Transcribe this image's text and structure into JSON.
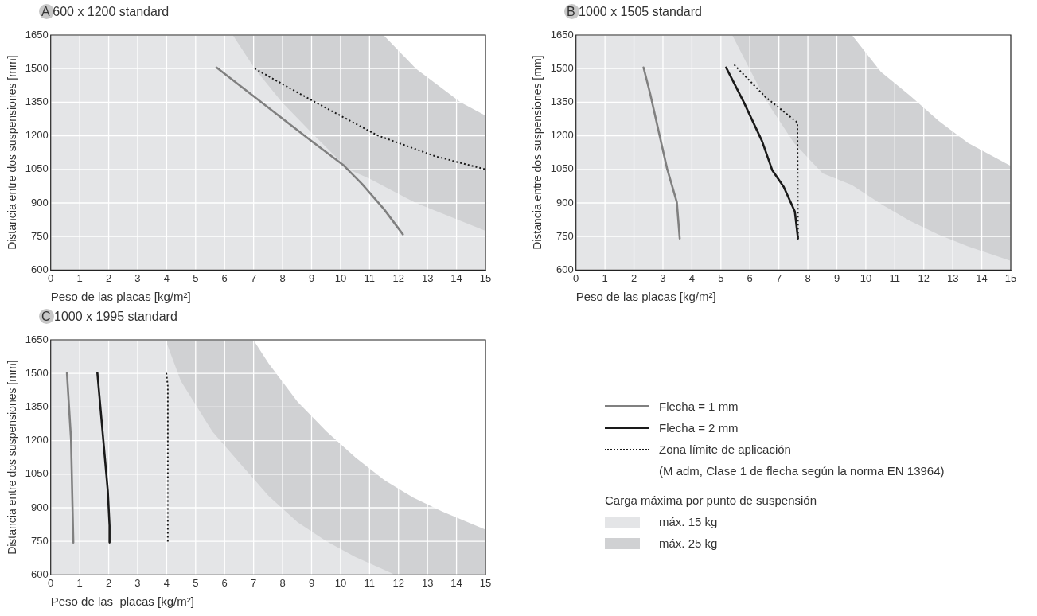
{
  "chart_data": [
    {
      "type": "line",
      "title": "A 600 x 1200 standard",
      "xlabel": "Peso de las placas [kg/m²]",
      "ylabel": "Distancia entre dos suspensiones [mm]",
      "xlim": [
        0,
        15
      ],
      "xticks": [
        0,
        1,
        2,
        3,
        4,
        5,
        6,
        7,
        8,
        9,
        10,
        11,
        12,
        13,
        14,
        15
      ],
      "ylim": [
        600,
        1650
      ],
      "yticks": [
        600,
        750,
        900,
        1050,
        1200,
        1350,
        1500,
        1650
      ],
      "grid": true,
      "legend": false,
      "series": [
        {
          "type": "line",
          "color": "#808080",
          "x": [
            5.72,
            8.98,
            10.09,
            10.74,
            11.5,
            12.15
          ],
          "values": [
            1505,
            1178,
            1070,
            985,
            872,
            760
          ]
        },
        {
          "type": "line",
          "color": "#1a1a1a",
          "line_style": "dotted",
          "x": [
            7.04,
            9.04,
            11.27,
            13.26,
            15
          ],
          "values": [
            1500,
            1356,
            1202,
            1109,
            1050
          ]
        },
        {
          "type": "area",
          "color": "#e4e5e7",
          "x": [
            0,
            6.28,
            7.04,
            7.98,
            9.1,
            10.27,
            11,
            12.6,
            15
          ],
          "values": [
            1650,
            1650,
            1500,
            1350,
            1200,
            1050,
            1008,
            900,
            776
          ]
        },
        {
          "type": "area",
          "color": "#d0d1d3",
          "x": [
            6.28,
            11.48,
            12.6,
            14.14,
            15
          ],
          "values": [
            1650,
            1650,
            1500,
            1350,
            1290
          ]
        }
      ]
    },
    {
      "type": "line",
      "title": "B 1000 x 1505 standard",
      "xlabel": "Peso de las placas [kg/m²]",
      "ylabel": "Distancia entre dos suspensiones [mm]",
      "xlim": [
        0,
        15
      ],
      "xticks": [
        0,
        1,
        2,
        3,
        4,
        5,
        6,
        7,
        8,
        9,
        10,
        11,
        12,
        13,
        14,
        15
      ],
      "ylim": [
        600,
        1650
      ],
      "yticks": [
        600,
        750,
        900,
        1050,
        1200,
        1350,
        1500,
        1650
      ],
      "grid": true,
      "legend": false,
      "series": [
        {
          "type": "line",
          "color": "#808080",
          "x": [
            2.33,
            2.56,
            3.14,
            3.48,
            3.58
          ],
          "values": [
            1505,
            1388,
            1055,
            903,
            741
          ]
        },
        {
          "type": "line",
          "color": "#1a1a1a",
          "x": [
            5.18,
            5.79,
            6.42,
            6.77,
            7.17,
            7.55,
            7.66
          ],
          "values": [
            1505,
            1350,
            1176,
            1047,
            971,
            862,
            741
          ]
        },
        {
          "type": "line",
          "color": "#1a1a1a",
          "line_style": "dotted",
          "x": [
            5.46,
            6.54,
            7.64,
            7.66
          ],
          "values": [
            1517,
            1373,
            1259,
            741
          ]
        },
        {
          "type": "area",
          "color": "#e4e5e7",
          "x": [
            0,
            5.39,
            6.52,
            7.52,
            8.51,
            9.52,
            10.52,
            11.52,
            12.51,
            13.52,
            15
          ],
          "values": [
            1650,
            1650,
            1365,
            1168,
            1032,
            980,
            896,
            820,
            759,
            706,
            641
          ]
        },
        {
          "type": "area",
          "color": "#d0d1d3",
          "x": [
            5.39,
            9.52,
            10.52,
            11.52,
            12.51,
            13.52,
            15
          ],
          "values": [
            1650,
            1650,
            1486,
            1380,
            1267,
            1168,
            1065
          ]
        }
      ]
    },
    {
      "type": "line",
      "title": "C 1000 x 1995 standard",
      "xlabel": "Peso de las  placas [kg/m²]",
      "ylabel": "Distancia entre dos suspensiones [mm]",
      "xlim": [
        0,
        15
      ],
      "xticks": [
        0,
        1,
        2,
        3,
        4,
        5,
        6,
        7,
        8,
        9,
        10,
        11,
        12,
        13,
        14,
        15
      ],
      "ylim": [
        600,
        1650
      ],
      "yticks": [
        600,
        750,
        900,
        1050,
        1200,
        1350,
        1500,
        1650
      ],
      "grid": true,
      "legend": "right",
      "legend_title": "Carga máxima por punto de suspensión",
      "annotations": [
        "(M adm, Clase 1 de flecha según la norma EN 13964)"
      ],
      "series": [
        {
          "type": "line",
          "name": "Flecha = 1 mm",
          "color": "#808080",
          "x": [
            0.56,
            0.7,
            0.78
          ],
          "values": [
            1502,
            1209,
            745
          ]
        },
        {
          "type": "line",
          "name": "Flecha = 2 mm",
          "color": "#1a1a1a",
          "x": [
            1.61,
            1.97,
            2.03,
            2.03
          ],
          "values": [
            1502,
            976,
            820,
            745
          ]
        },
        {
          "type": "line",
          "name": "Zona límite de aplicación",
          "color": "#1a1a1a",
          "line_style": "dotted",
          "x": [
            3.99,
            4.04,
            4.04
          ],
          "values": [
            1502,
            1443,
            739
          ]
        },
        {
          "type": "area",
          "name": "máx. 15 kg",
          "color": "#e4e5e7",
          "x": [
            0,
            3.96,
            4.49,
            5.58,
            6.52,
            7.52,
            8.52,
            9.52,
            10.52,
            11.81
          ],
          "values": [
            1650,
            1650,
            1466,
            1240,
            1100,
            952,
            835,
            750,
            680,
            605
          ]
        },
        {
          "type": "area",
          "name": "máx. 25 kg",
          "color": "#d0d1d3",
          "x": [
            3.96,
            6.99,
            7.52,
            8.52,
            9.52,
            10.52,
            11.52,
            12.51,
            13.51,
            15
          ],
          "values": [
            1650,
            1650,
            1544,
            1373,
            1240,
            1124,
            1023,
            945,
            883,
            802
          ]
        }
      ]
    }
  ]
}
